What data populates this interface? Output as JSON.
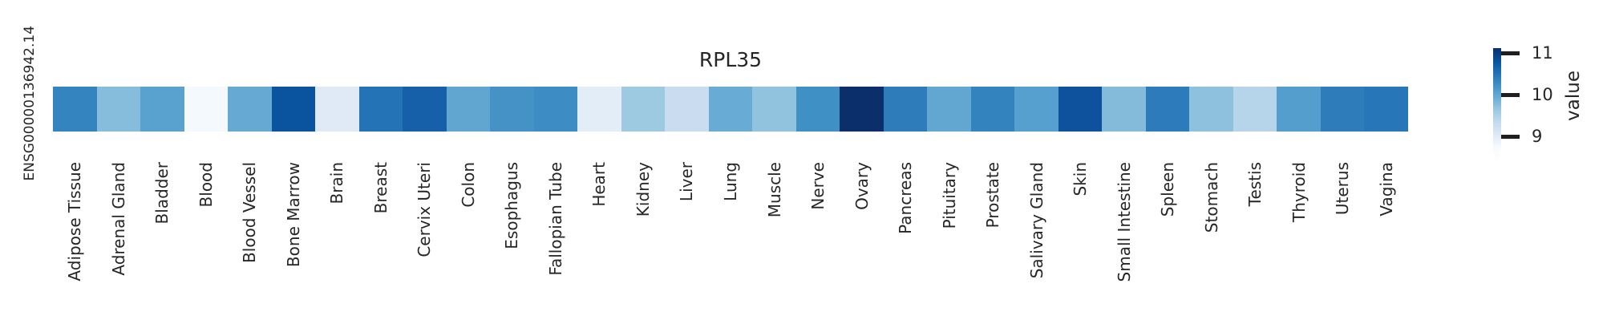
{
  "chart_data": {
    "type": "heatmap",
    "title": "RPL35",
    "row_label": "ENSG00000136942.14",
    "categories": [
      "Adipose Tissue",
      "Adrenal Gland",
      "Bladder",
      "Blood",
      "Blood Vessel",
      "Bone Marrow",
      "Brain",
      "Breast",
      "Cervix Uteri",
      "Colon",
      "Esophagus",
      "Fallopian Tube",
      "Heart",
      "Kidney",
      "Liver",
      "Lung",
      "Muscle",
      "Nerve",
      "Ovary",
      "Pancreas",
      "Pituitary",
      "Prostate",
      "Salivary Gland",
      "Skin",
      "Small Intestine",
      "Spleen",
      "Stomach",
      "Testis",
      "Thyroid",
      "Uterus",
      "Vagina"
    ],
    "series": [
      {
        "name": "ENSG00000136942.14",
        "values": [
          10.35,
          9.8,
          10.05,
          8.8,
          9.95,
          10.8,
          9.0,
          10.5,
          10.7,
          10.0,
          10.2,
          10.3,
          9.0,
          9.65,
          9.3,
          9.95,
          9.7,
          10.25,
          11.1,
          10.4,
          10.0,
          10.35,
          10.1,
          10.8,
          9.8,
          10.45,
          9.75,
          9.45,
          10.1,
          10.4,
          10.5
        ]
      }
    ],
    "cell_colors": [
      "#3484c0",
      "#87bddc",
      "#59a1cf",
      "#f4f9fe",
      "#66aad4",
      "#0a539e",
      "#dfeaf6",
      "#2373b6",
      "#1560a9",
      "#61a5d1",
      "#4593c6",
      "#3d8cc3",
      "#e3edf8",
      "#9dc9e1",
      "#c9dcf0",
      "#68abd4",
      "#91c2de",
      "#3f90c4",
      "#0a2f6b",
      "#2e7cba",
      "#62a7d2",
      "#3383be",
      "#55a0ce",
      "#0e519d",
      "#84bbdb",
      "#2d7bba",
      "#8ec1de",
      "#b6d4ea",
      "#549ecd",
      "#2e7cba",
      "#2676b8"
    ],
    "colormap": "Blues",
    "colorbar": {
      "label": "value",
      "tick_labels": [
        "11",
        "10",
        "9"
      ],
      "tick_values": [
        11,
        10,
        9
      ],
      "gradient_top_to_bottom": [
        "#08306b",
        "#08519c",
        "#2171b5",
        "#4292c6",
        "#6baed6",
        "#9ecae1",
        "#c6dbef",
        "#deebf7",
        "#f7fbff"
      ],
      "extend_min_taper": true
    },
    "value_range_estimated": [
      8.75,
      11.1
    ],
    "legend_position": "right",
    "grid": false,
    "background": "#ffffff",
    "text_color": "#262626"
  }
}
